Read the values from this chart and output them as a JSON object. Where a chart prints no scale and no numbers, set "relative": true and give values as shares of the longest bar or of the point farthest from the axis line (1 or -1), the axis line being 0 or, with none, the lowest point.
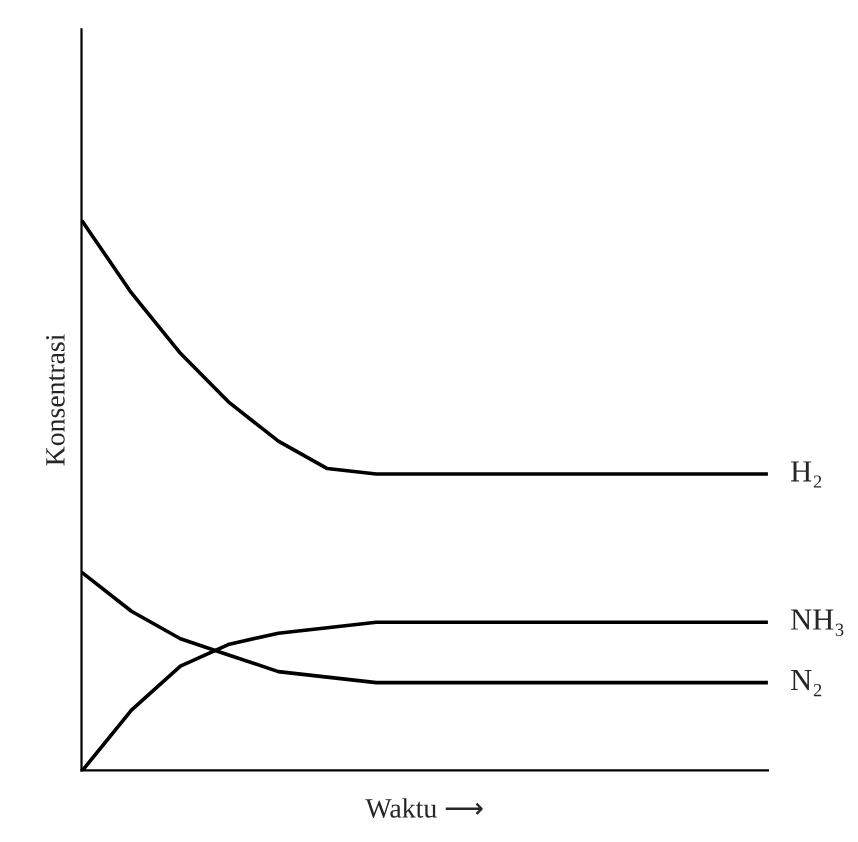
{
  "chart_data": {
    "type": "line",
    "relative": true,
    "xlabel": "Waktu ⟶",
    "ylabel": "Konsentrasi",
    "categories": [
      null,
      null,
      null,
      null,
      null,
      null,
      null,
      null,
      null,
      null,
      null,
      null,
      null,
      null,
      null
    ],
    "series": [
      {
        "name": "H₂",
        "color": "#000000",
        "values": [
          1,
          0.87,
          0.76,
          0.67,
          0.6,
          0.55,
          0.54,
          0.54,
          0.54,
          0.54,
          0.54,
          0.54,
          0.54,
          0.54,
          0.54
        ]
      },
      {
        "name": "NH₃",
        "color": "#000000",
        "values": [
          0,
          0.11,
          0.19,
          0.23,
          0.25,
          0.26,
          0.27,
          0.27,
          0.27,
          0.27,
          0.27,
          0.27,
          0.27,
          0.27,
          0.27
        ]
      },
      {
        "name": "N₂",
        "color": "#000000",
        "values": [
          0.36,
          0.29,
          0.24,
          0.21,
          0.18,
          0.17,
          0.16,
          0.16,
          0.16,
          0.16,
          0.16,
          0.16,
          0.16,
          0.16,
          0.16
        ]
      }
    ],
    "legend": false
  }
}
